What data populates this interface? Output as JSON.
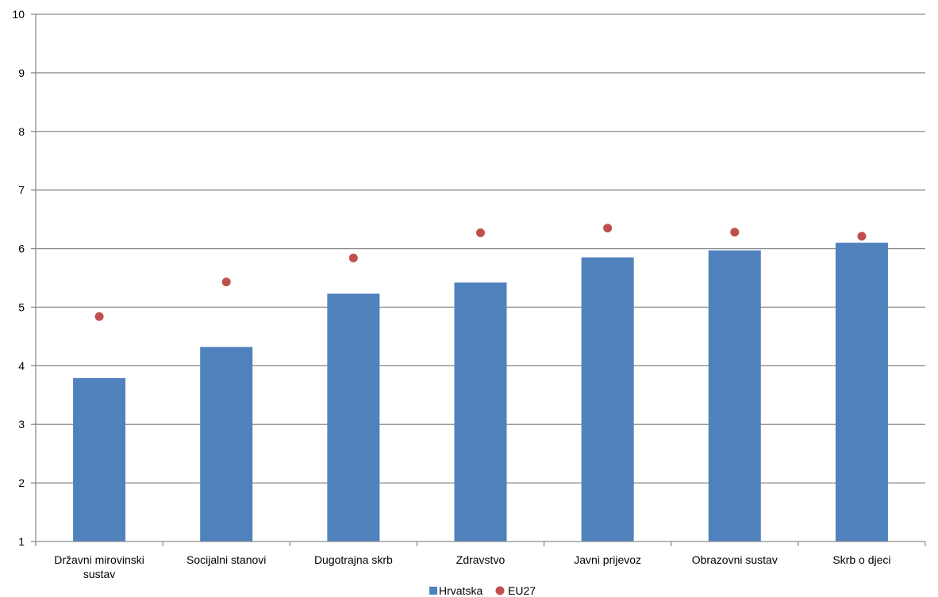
{
  "chart_data": {
    "type": "bar",
    "categories": [
      [
        "Državni mirovinski",
        "sustav"
      ],
      [
        "Socijalni stanovi"
      ],
      [
        "Dugotrajna skrb"
      ],
      [
        "Zdravstvo"
      ],
      [
        "Javni prijevoz"
      ],
      [
        "Obrazovni sustav"
      ],
      [
        "Skrb o djeci"
      ]
    ],
    "series": [
      {
        "name": "Hrvatska",
        "type": "bar",
        "color": "#4F81BD",
        "values": [
          3.79,
          4.32,
          5.23,
          5.42,
          5.85,
          5.97,
          6.1
        ]
      },
      {
        "name": "EU27",
        "type": "scatter",
        "color": "#C0504D",
        "values": [
          4.84,
          5.43,
          5.84,
          6.27,
          6.35,
          6.28,
          6.21
        ]
      }
    ],
    "ylim": [
      1,
      10
    ],
    "yticks": [
      "1",
      "2",
      "3",
      "4",
      "5",
      "6",
      "7",
      "8",
      "9",
      "10"
    ],
    "grid": true,
    "legend_position": "bottom"
  }
}
